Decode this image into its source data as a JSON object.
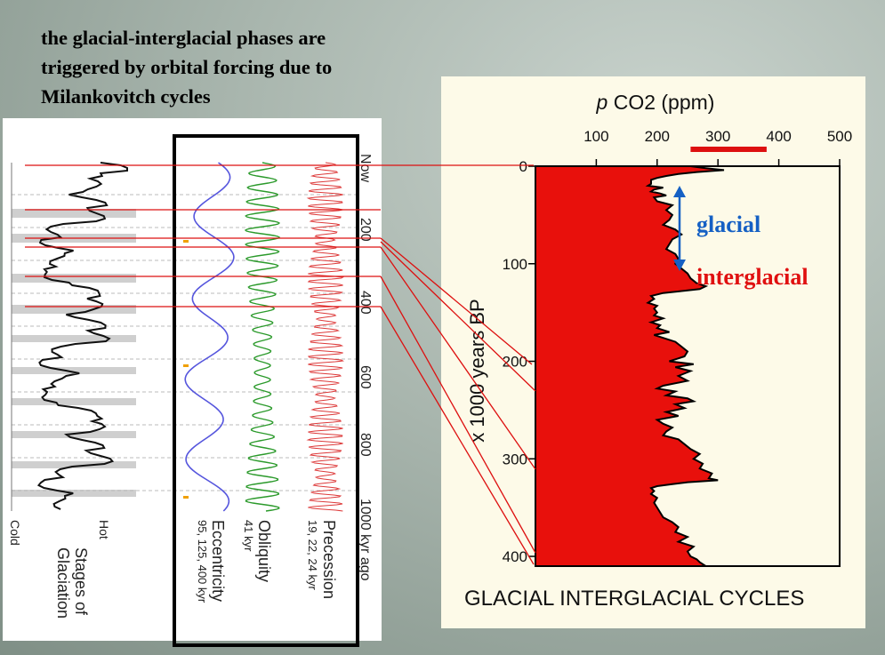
{
  "heading": "the glacial-interglacial phases are\ntriggered by orbital forcing due to\nMilankovitch cycles",
  "colors": {
    "co2_fill": "#e8100c",
    "eccentricity": "#5555dd",
    "obliquity": "#2b9a2b",
    "precession": "#dd3a3a",
    "arrow": "#1560c4",
    "connector": "#dd1010",
    "bar": "#dd1010"
  },
  "left_chart": {
    "time_axis_ticks": [
      "Now",
      "200",
      "400",
      "600",
      "800",
      "1000 kyr ago"
    ],
    "columns": [
      {
        "name": "Stages of Glaciation",
        "sub": "",
        "left_end": "Cold",
        "right_end": "Hot"
      },
      {
        "name": "Eccentricity",
        "sub": "95, 125, 400 kyr"
      },
      {
        "name": "Obliquity",
        "sub": "41 kyr"
      },
      {
        "name": "Precession",
        "sub": "19, 22, 24 kyr"
      }
    ]
  },
  "annotations": {
    "glacial": "glacial",
    "interglacial": "interglacial"
  },
  "chart_data": {
    "type": "area",
    "title": "GLACIAL INTERGLACIAL CYCLES",
    "xlabel_italic": "p",
    "xlabel": "CO2 (ppm)",
    "ylabel": "x 1000 years BP",
    "xlim": [
      0,
      500
    ],
    "ylim": [
      0,
      410
    ],
    "xticks": [
      100,
      200,
      300,
      400,
      500
    ],
    "yticks": [
      0,
      100,
      200,
      300,
      400
    ],
    "reference_bar_ppm": [
      255,
      380
    ],
    "series": [
      {
        "kyr": [
          0,
          2,
          4,
          6,
          8,
          10,
          12,
          14,
          16,
          18,
          20,
          22,
          24,
          26,
          28,
          30,
          32,
          36,
          40,
          45,
          50,
          55,
          60,
          65,
          70,
          75,
          80,
          85,
          90,
          95,
          100,
          105,
          110,
          115,
          120,
          123,
          126,
          128,
          130,
          133,
          136,
          138,
          140,
          143,
          146,
          150,
          153,
          156,
          160,
          163,
          166,
          170,
          173,
          176,
          180,
          185,
          190,
          195,
          200,
          203,
          206,
          210,
          215,
          220,
          225,
          228,
          231,
          235,
          238,
          241,
          244,
          248,
          252,
          256,
          260,
          264,
          268,
          272,
          276,
          280,
          285,
          290,
          295,
          300,
          305,
          310,
          315,
          320,
          322,
          324,
          326,
          328,
          330,
          333,
          336,
          340,
          345,
          350,
          355,
          360,
          365,
          370,
          375,
          380,
          385,
          390,
          395,
          400,
          403,
          406,
          410
        ],
        "co2": [
          255,
          280,
          310,
          265,
          235,
          215,
          200,
          190,
          190,
          190,
          185,
          210,
          195,
          190,
          205,
          215,
          195,
          200,
          225,
          215,
          225,
          220,
          210,
          230,
          240,
          225,
          220,
          215,
          230,
          235,
          230,
          240,
          250,
          255,
          265,
          280,
          270,
          240,
          210,
          190,
          195,
          190,
          185,
          200,
          195,
          200,
          195,
          210,
          190,
          205,
          200,
          220,
          195,
          210,
          230,
          240,
          250,
          245,
          220,
          260,
          230,
          255,
          235,
          250,
          210,
          200,
          230,
          215,
          250,
          260,
          230,
          245,
          215,
          235,
          200,
          210,
          225,
          215,
          210,
          235,
          245,
          255,
          270,
          260,
          275,
          270,
          290,
          285,
          300,
          250,
          225,
          200,
          190,
          195,
          190,
          200,
          195,
          200,
          205,
          210,
          225,
          235,
          230,
          250,
          235,
          260,
          250,
          255,
          265,
          270,
          280
        ]
      }
    ]
  }
}
